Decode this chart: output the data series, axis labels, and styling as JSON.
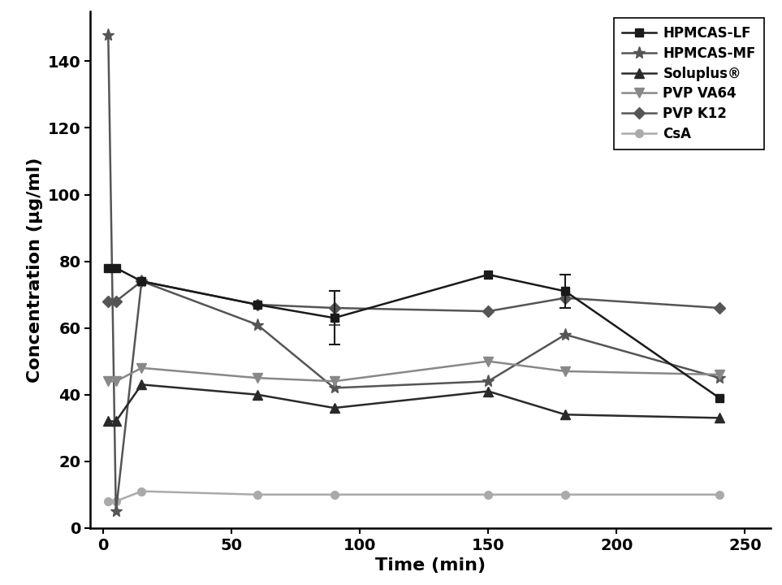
{
  "title": "",
  "xlabel": "Time (min)",
  "ylabel": "Concentration (μg/ml)",
  "xlim": [
    -5,
    260
  ],
  "ylim": [
    0,
    155
  ],
  "yticks": [
    0,
    20,
    40,
    60,
    80,
    100,
    120,
    140
  ],
  "xticks": [
    0,
    50,
    100,
    150,
    200,
    250
  ],
  "series": [
    {
      "label": "HPMCAS-LF",
      "x": [
        2,
        5,
        15,
        60,
        90,
        150,
        180,
        240
      ],
      "y": [
        78,
        78,
        74,
        67,
        63,
        76,
        71,
        39
      ],
      "yerr": [
        0,
        0,
        0,
        0,
        8,
        0,
        5,
        0
      ],
      "color": "#1a1a1a",
      "marker": "s",
      "markersize": 7,
      "linewidth": 1.8,
      "zorder": 5
    },
    {
      "label": "HPMCAS-MF",
      "x": [
        2,
        5,
        15,
        60,
        90,
        150,
        180,
        240
      ],
      "y": [
        148,
        5,
        74,
        61,
        42,
        44,
        58,
        45
      ],
      "yerr": [
        0,
        0,
        0,
        0,
        0,
        0,
        0,
        0
      ],
      "color": "#555555",
      "marker": "*",
      "markersize": 11,
      "linewidth": 1.8,
      "zorder": 4
    },
    {
      "label": "Soluplus®",
      "x": [
        2,
        5,
        15,
        60,
        90,
        150,
        180,
        240
      ],
      "y": [
        32,
        32,
        43,
        40,
        36,
        41,
        34,
        33
      ],
      "yerr": [
        0,
        0,
        0,
        0,
        0,
        0,
        0,
        0
      ],
      "color": "#2a2a2a",
      "marker": "^",
      "markersize": 8,
      "linewidth": 1.8,
      "zorder": 4
    },
    {
      "label": "PVP VA64",
      "x": [
        2,
        5,
        15,
        60,
        90,
        150,
        180,
        240
      ],
      "y": [
        44,
        44,
        48,
        45,
        44,
        50,
        47,
        46
      ],
      "yerr": [
        0,
        0,
        0,
        0,
        0,
        0,
        0,
        0
      ],
      "color": "#888888",
      "marker": "v",
      "markersize": 9,
      "linewidth": 1.8,
      "zorder": 4
    },
    {
      "label": "PVP K12",
      "x": [
        2,
        5,
        15,
        60,
        90,
        150,
        180,
        240
      ],
      "y": [
        68,
        68,
        74,
        67,
        66,
        65,
        69,
        66
      ],
      "yerr": [
        0,
        0,
        0,
        0,
        5,
        0,
        0,
        0
      ],
      "color": "#555555",
      "marker": "D",
      "markersize": 7,
      "linewidth": 1.8,
      "zorder": 3
    },
    {
      "label": "CsA",
      "x": [
        2,
        5,
        15,
        60,
        90,
        150,
        180,
        240
      ],
      "y": [
        8,
        8,
        11,
        10,
        10,
        10,
        10,
        10
      ],
      "yerr": [
        0,
        0,
        0,
        0,
        0,
        0,
        0,
        0
      ],
      "color": "#aaaaaa",
      "marker": "o",
      "markersize": 7,
      "linewidth": 1.8,
      "zorder": 2
    }
  ],
  "legend_fontsize": 12,
  "axis_label_fontsize": 16,
  "tick_fontsize": 14,
  "background_color": "#ffffff",
  "figure_width": 9.63,
  "figure_height": 7.2,
  "dpi": 100
}
